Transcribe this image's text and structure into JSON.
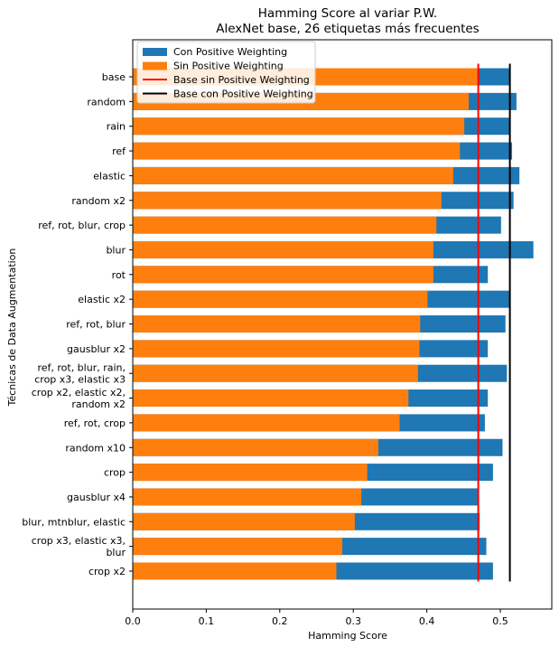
{
  "chart_data": {
    "type": "bar",
    "orientation": "horizontal",
    "title": "Hamming Score al variar P.W.",
    "subtitle": "AlexNet base, 26 etiquetas más frecuentes",
    "xlabel": "Hamming Score",
    "ylabel": "Técnicas de Data Augmentation",
    "xlim": [
      0,
      0.57
    ],
    "xticks": [
      "0.0",
      "0.1",
      "0.2",
      "0.3",
      "0.4",
      "0.5"
    ],
    "grid": false,
    "legend_position": "top-left",
    "categories": [
      [
        "base"
      ],
      [
        "random"
      ],
      [
        "rain"
      ],
      [
        "ref"
      ],
      [
        "elastic"
      ],
      [
        "random x2"
      ],
      [
        "ref, rot, blur, crop"
      ],
      [
        "blur"
      ],
      [
        "rot"
      ],
      [
        "elastic x2"
      ],
      [
        "ref, rot, blur"
      ],
      [
        "gausblur x2"
      ],
      [
        "ref, rot, blur, rain,",
        "crop x3, elastic x3"
      ],
      [
        "crop x2, elastic x2,",
        "random x2"
      ],
      [
        "ref, rot, crop"
      ],
      [
        "random x10"
      ],
      [
        "crop"
      ],
      [
        "gausblur x4"
      ],
      [
        "blur, mtnblur, elastic"
      ],
      [
        "crop x3, elastic x3,",
        "blur"
      ],
      [
        "crop x2"
      ]
    ],
    "series": [
      {
        "name": "Con Positive Weighting",
        "color": "#1f77b4",
        "values": [
          0.513,
          0.522,
          0.513,
          0.516,
          0.526,
          0.518,
          0.501,
          0.545,
          0.483,
          0.513,
          0.507,
          0.483,
          0.509,
          0.483,
          0.479,
          0.503,
          0.49,
          0.469,
          0.472,
          0.481,
          0.49
        ]
      },
      {
        "name": "Sin Positive Weighting",
        "color": "#ff7f0e",
        "values": [
          0.47,
          0.457,
          0.451,
          0.445,
          0.436,
          0.42,
          0.413,
          0.409,
          0.409,
          0.401,
          0.391,
          0.39,
          0.388,
          0.375,
          0.363,
          0.334,
          0.319,
          0.311,
          0.302,
          0.285,
          0.277
        ]
      }
    ],
    "reference_lines": [
      {
        "name": "Base sin Positive Weighting",
        "color": "#ff0000",
        "value": 0.47
      },
      {
        "name": "Base con Positive Weighting",
        "color": "#000000",
        "value": 0.513
      }
    ]
  }
}
